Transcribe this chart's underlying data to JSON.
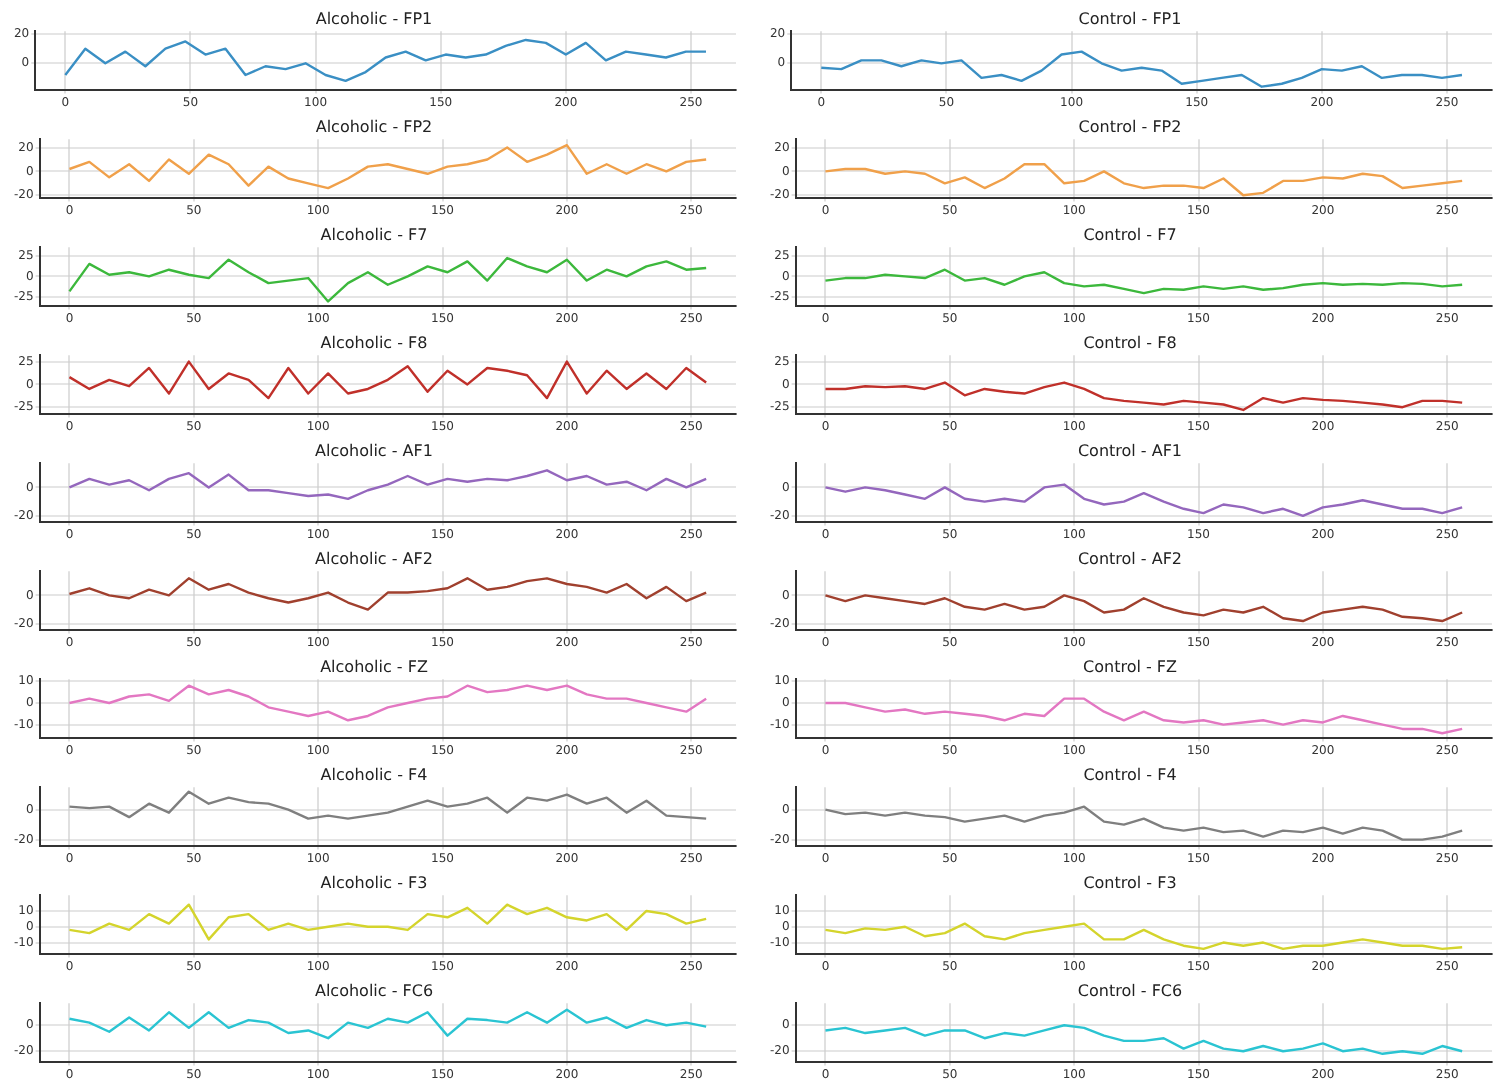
{
  "chart_data": [
    {
      "type": "line",
      "title": "Alcoholic - FP1",
      "x": [
        0,
        8,
        16,
        24,
        32,
        40,
        48,
        56,
        64,
        72,
        80,
        88,
        96,
        104,
        112,
        120,
        128,
        136,
        144,
        152,
        160,
        168,
        176,
        184,
        192,
        200,
        208,
        216,
        224,
        232,
        240,
        248,
        256
      ],
      "xlim": [
        -12,
        268
      ],
      "xticks": [
        0,
        50,
        100,
        150,
        200,
        250
      ],
      "ylim": [
        -18,
        22
      ],
      "yticks": [
        0,
        20
      ],
      "grid": true,
      "series": [
        {
          "color": "#3a8fc4",
          "values": [
            -8,
            10,
            0,
            8,
            -2,
            10,
            15,
            6,
            10,
            -8,
            -2,
            -4,
            0,
            -8,
            -12,
            -6,
            4,
            8,
            2,
            6,
            4,
            6,
            12,
            16,
            14,
            6,
            14,
            2,
            8,
            6,
            4,
            8,
            8
          ]
        }
      ]
    },
    {
      "type": "line",
      "title": "Control - FP1",
      "x": [
        0,
        8,
        16,
        24,
        32,
        40,
        48,
        56,
        64,
        72,
        80,
        88,
        96,
        104,
        112,
        120,
        128,
        136,
        144,
        152,
        160,
        168,
        176,
        184,
        192,
        200,
        208,
        216,
        224,
        232,
        240,
        248,
        256
      ],
      "xlim": [
        -12,
        268
      ],
      "xticks": [
        0,
        50,
        100,
        150,
        200,
        250
      ],
      "ylim": [
        -18,
        22
      ],
      "yticks": [
        0,
        20
      ],
      "grid": true,
      "series": [
        {
          "color": "#3a8fc4",
          "values": [
            -3,
            -4,
            2,
            2,
            -2,
            2,
            0,
            2,
            -10,
            -8,
            -12,
            -5,
            6,
            8,
            0,
            -5,
            -3,
            -5,
            -14,
            -12,
            -10,
            -8,
            -16,
            -14,
            -10,
            -4,
            -5,
            -2,
            -10,
            -8,
            -8,
            -10,
            -8
          ]
        }
      ]
    },
    {
      "type": "line",
      "title": "Alcoholic - FP2",
      "x": [
        0,
        8,
        16,
        24,
        32,
        40,
        48,
        56,
        64,
        72,
        80,
        88,
        96,
        104,
        112,
        120,
        128,
        136,
        144,
        152,
        160,
        168,
        176,
        184,
        192,
        200,
        208,
        216,
        224,
        232,
        240,
        248,
        256
      ],
      "xlim": [
        -12,
        268
      ],
      "xticks": [
        0,
        50,
        100,
        150,
        200,
        250
      ],
      "ylim": [
        -22,
        27
      ],
      "yticks": [
        -20,
        0,
        20
      ],
      "grid": true,
      "series": [
        {
          "color": "#f0a04a",
          "values": [
            2,
            8,
            -5,
            6,
            -8,
            10,
            -2,
            14,
            6,
            -12,
            4,
            -6,
            -10,
            -14,
            -6,
            4,
            6,
            2,
            -2,
            4,
            6,
            10,
            20,
            8,
            14,
            22,
            -2,
            6,
            -2,
            6,
            0,
            8,
            10
          ]
        }
      ]
    },
    {
      "type": "line",
      "title": "Control - FP2",
      "x": [
        0,
        8,
        16,
        24,
        32,
        40,
        48,
        56,
        64,
        72,
        80,
        88,
        96,
        104,
        112,
        120,
        128,
        136,
        144,
        152,
        160,
        168,
        176,
        184,
        192,
        200,
        208,
        216,
        224,
        232,
        240,
        248,
        256
      ],
      "xlim": [
        -12,
        268
      ],
      "xticks": [
        0,
        50,
        100,
        150,
        200,
        250
      ],
      "ylim": [
        -22,
        27
      ],
      "yticks": [
        -20,
        0,
        20
      ],
      "grid": true,
      "series": [
        {
          "color": "#f0a04a",
          "values": [
            0,
            2,
            2,
            -2,
            0,
            -2,
            -10,
            -5,
            -14,
            -6,
            6,
            6,
            -10,
            -8,
            0,
            -10,
            -14,
            -12,
            -12,
            -14,
            -6,
            -20,
            -18,
            -8,
            -8,
            -5,
            -6,
            -2,
            -4,
            -14,
            -12,
            -10,
            -8
          ]
        }
      ]
    },
    {
      "type": "line",
      "title": "Alcoholic - F7",
      "x": [
        0,
        8,
        16,
        24,
        32,
        40,
        48,
        56,
        64,
        72,
        80,
        88,
        96,
        104,
        112,
        120,
        128,
        136,
        144,
        152,
        160,
        168,
        176,
        184,
        192,
        200,
        208,
        216,
        224,
        232,
        240,
        248,
        256
      ],
      "xlim": [
        -12,
        268
      ],
      "xticks": [
        0,
        50,
        100,
        150,
        200,
        250
      ],
      "ylim": [
        -35,
        35
      ],
      "yticks": [
        -25,
        0,
        25
      ],
      "grid": true,
      "series": [
        {
          "color": "#3cb83c",
          "values": [
            -18,
            15,
            2,
            5,
            0,
            8,
            2,
            -2,
            20,
            5,
            -8,
            -5,
            -2,
            -30,
            -8,
            5,
            -10,
            0,
            12,
            5,
            18,
            -5,
            22,
            12,
            5,
            20,
            -5,
            8,
            0,
            12,
            18,
            8,
            10
          ]
        }
      ]
    },
    {
      "type": "line",
      "title": "Control - F7",
      "x": [
        0,
        8,
        16,
        24,
        32,
        40,
        48,
        56,
        64,
        72,
        80,
        88,
        96,
        104,
        112,
        120,
        128,
        136,
        144,
        152,
        160,
        168,
        176,
        184,
        192,
        200,
        208,
        216,
        224,
        232,
        240,
        248,
        256
      ],
      "xlim": [
        -12,
        268
      ],
      "xticks": [
        0,
        50,
        100,
        150,
        200,
        250
      ],
      "ylim": [
        -35,
        35
      ],
      "yticks": [
        -25,
        0,
        25
      ],
      "grid": true,
      "series": [
        {
          "color": "#3cb83c",
          "values": [
            -5,
            -2,
            -2,
            2,
            0,
            -2,
            8,
            -5,
            -2,
            -10,
            0,
            5,
            -8,
            -12,
            -10,
            -15,
            -20,
            -15,
            -16,
            -12,
            -15,
            -12,
            -16,
            -14,
            -10,
            -8,
            -10,
            -9,
            -10,
            -8,
            -9,
            -12,
            -10
          ]
        }
      ]
    },
    {
      "type": "line",
      "title": "Alcoholic - F8",
      "x": [
        0,
        8,
        16,
        24,
        32,
        40,
        48,
        56,
        64,
        72,
        80,
        88,
        96,
        104,
        112,
        120,
        128,
        136,
        144,
        152,
        160,
        168,
        176,
        184,
        192,
        200,
        208,
        216,
        224,
        232,
        240,
        248,
        256
      ],
      "xlim": [
        -12,
        268
      ],
      "xticks": [
        0,
        50,
        100,
        150,
        200,
        250
      ],
      "ylim": [
        -32,
        32
      ],
      "yticks": [
        -25,
        0,
        25
      ],
      "grid": true,
      "series": [
        {
          "color": "#c0302a",
          "values": [
            8,
            -5,
            5,
            -2,
            18,
            -10,
            25,
            -5,
            12,
            5,
            -15,
            18,
            -10,
            12,
            -10,
            -5,
            5,
            20,
            -8,
            15,
            0,
            18,
            15,
            10,
            -15,
            25,
            -10,
            15,
            -5,
            12,
            -5,
            18,
            2
          ]
        }
      ]
    },
    {
      "type": "line",
      "title": "Control - F8",
      "x": [
        0,
        8,
        16,
        24,
        32,
        40,
        48,
        56,
        64,
        72,
        80,
        88,
        96,
        104,
        112,
        120,
        128,
        136,
        144,
        152,
        160,
        168,
        176,
        184,
        192,
        200,
        208,
        216,
        224,
        232,
        240,
        248,
        256
      ],
      "xlim": [
        -12,
        268
      ],
      "xticks": [
        0,
        50,
        100,
        150,
        200,
        250
      ],
      "ylim": [
        -32,
        32
      ],
      "yticks": [
        -25,
        0,
        25
      ],
      "grid": true,
      "series": [
        {
          "color": "#c0302a",
          "values": [
            -5,
            -5,
            -2,
            -3,
            -2,
            -5,
            2,
            -12,
            -5,
            -8,
            -10,
            -3,
            2,
            -5,
            -15,
            -18,
            -20,
            -22,
            -18,
            -20,
            -22,
            -28,
            -15,
            -20,
            -15,
            -17,
            -18,
            -20,
            -22,
            -25,
            -18,
            -18,
            -20
          ]
        }
      ]
    },
    {
      "type": "line",
      "title": "Alcoholic - AF1",
      "x": [
        0,
        8,
        16,
        24,
        32,
        40,
        48,
        56,
        64,
        72,
        80,
        88,
        96,
        104,
        112,
        120,
        128,
        136,
        144,
        152,
        160,
        168,
        176,
        184,
        192,
        200,
        208,
        216,
        224,
        232,
        240,
        248,
        256
      ],
      "xlim": [
        -12,
        268
      ],
      "xticks": [
        0,
        50,
        100,
        150,
        200,
        250
      ],
      "ylim": [
        -24,
        17
      ],
      "yticks": [
        -20,
        0
      ],
      "grid": true,
      "series": [
        {
          "color": "#9467bd",
          "values": [
            0,
            6,
            2,
            5,
            -2,
            6,
            10,
            0,
            9,
            -2,
            -2,
            -4,
            -6,
            -5,
            -8,
            -2,
            2,
            8,
            2,
            6,
            4,
            6,
            5,
            8,
            12,
            5,
            8,
            2,
            4,
            -2,
            6,
            0,
            6
          ]
        }
      ]
    },
    {
      "type": "line",
      "title": "Control - AF1",
      "x": [
        0,
        8,
        16,
        24,
        32,
        40,
        48,
        56,
        64,
        72,
        80,
        88,
        96,
        104,
        112,
        120,
        128,
        136,
        144,
        152,
        160,
        168,
        176,
        184,
        192,
        200,
        208,
        216,
        224,
        232,
        240,
        248,
        256
      ],
      "xlim": [
        -12,
        268
      ],
      "xticks": [
        0,
        50,
        100,
        150,
        200,
        250
      ],
      "ylim": [
        -24,
        17
      ],
      "yticks": [
        -20,
        0
      ],
      "grid": true,
      "series": [
        {
          "color": "#9467bd",
          "values": [
            0,
            -3,
            0,
            -2,
            -5,
            -8,
            0,
            -8,
            -10,
            -8,
            -10,
            0,
            2,
            -8,
            -12,
            -10,
            -4,
            -10,
            -15,
            -18,
            -12,
            -14,
            -18,
            -15,
            -20,
            -14,
            -12,
            -9,
            -12,
            -15,
            -15,
            -18,
            -14
          ]
        }
      ]
    },
    {
      "type": "line",
      "title": "Alcoholic - AF2",
      "x": [
        0,
        8,
        16,
        24,
        32,
        40,
        48,
        56,
        64,
        72,
        80,
        88,
        96,
        104,
        112,
        120,
        128,
        136,
        144,
        152,
        160,
        168,
        176,
        184,
        192,
        200,
        208,
        216,
        224,
        232,
        240,
        248,
        256
      ],
      "xlim": [
        -12,
        268
      ],
      "xticks": [
        0,
        50,
        100,
        150,
        200,
        250
      ],
      "ylim": [
        -24,
        17
      ],
      "yticks": [
        -20,
        0
      ],
      "grid": true,
      "series": [
        {
          "color": "#a0402e",
          "values": [
            1,
            5,
            0,
            -2,
            4,
            0,
            12,
            4,
            8,
            2,
            -2,
            -5,
            -2,
            2,
            -5,
            -10,
            2,
            2,
            3,
            5,
            12,
            4,
            6,
            10,
            12,
            8,
            6,
            2,
            8,
            -2,
            6,
            -4,
            2
          ]
        }
      ]
    },
    {
      "type": "line",
      "title": "Control - AF2",
      "x": [
        0,
        8,
        16,
        24,
        32,
        40,
        48,
        56,
        64,
        72,
        80,
        88,
        96,
        104,
        112,
        120,
        128,
        136,
        144,
        152,
        160,
        168,
        176,
        184,
        192,
        200,
        208,
        216,
        224,
        232,
        240,
        248,
        256
      ],
      "xlim": [
        -12,
        268
      ],
      "xticks": [
        0,
        50,
        100,
        150,
        200,
        250
      ],
      "ylim": [
        -24,
        17
      ],
      "yticks": [
        -20,
        0
      ],
      "grid": true,
      "series": [
        {
          "color": "#a0402e",
          "values": [
            0,
            -4,
            0,
            -2,
            -4,
            -6,
            -2,
            -8,
            -10,
            -6,
            -10,
            -8,
            0,
            -4,
            -12,
            -10,
            -2,
            -8,
            -12,
            -14,
            -10,
            -12,
            -8,
            -16,
            -18,
            -12,
            -10,
            -8,
            -10,
            -15,
            -16,
            -18,
            -12
          ]
        }
      ]
    },
    {
      "type": "line",
      "title": "Alcoholic - FZ",
      "x": [
        0,
        8,
        16,
        24,
        32,
        40,
        48,
        56,
        64,
        72,
        80,
        88,
        96,
        104,
        112,
        120,
        128,
        136,
        144,
        152,
        160,
        168,
        176,
        184,
        192,
        200,
        208,
        216,
        224,
        232,
        240,
        248,
        256
      ],
      "xlim": [
        -12,
        268
      ],
      "xticks": [
        0,
        50,
        100,
        150,
        200,
        250
      ],
      "ylim": [
        -16,
        11
      ],
      "yticks": [
        -10,
        0,
        10
      ],
      "grid": true,
      "series": [
        {
          "color": "#e377c2",
          "values": [
            0,
            2,
            0,
            3,
            4,
            1,
            8,
            4,
            6,
            3,
            -2,
            -4,
            -6,
            -4,
            -8,
            -6,
            -2,
            0,
            2,
            3,
            8,
            5,
            6,
            8,
            6,
            8,
            4,
            2,
            2,
            0,
            -2,
            -4,
            2
          ]
        }
      ]
    },
    {
      "type": "line",
      "title": "Control - FZ",
      "x": [
        0,
        8,
        16,
        24,
        32,
        40,
        48,
        56,
        64,
        72,
        80,
        88,
        96,
        104,
        112,
        120,
        128,
        136,
        144,
        152,
        160,
        168,
        176,
        184,
        192,
        200,
        208,
        216,
        224,
        232,
        240,
        248,
        256
      ],
      "xlim": [
        -12,
        268
      ],
      "xticks": [
        0,
        50,
        100,
        150,
        200,
        250
      ],
      "ylim": [
        -16,
        11
      ],
      "yticks": [
        -10,
        0,
        10
      ],
      "grid": true,
      "series": [
        {
          "color": "#e377c2",
          "values": [
            0,
            0,
            -2,
            -4,
            -3,
            -5,
            -4,
            -5,
            -6,
            -8,
            -5,
            -6,
            2,
            2,
            -4,
            -8,
            -4,
            -8,
            -9,
            -8,
            -10,
            -9,
            -8,
            -10,
            -8,
            -9,
            -6,
            -8,
            -10,
            -12,
            -12,
            -14,
            -12
          ]
        }
      ]
    },
    {
      "type": "line",
      "title": "Alcoholic - F4",
      "x": [
        0,
        8,
        16,
        24,
        32,
        40,
        48,
        56,
        64,
        72,
        80,
        88,
        96,
        104,
        112,
        120,
        128,
        136,
        144,
        152,
        160,
        168,
        176,
        184,
        192,
        200,
        208,
        216,
        224,
        232,
        240,
        248,
        256
      ],
      "xlim": [
        -12,
        268
      ],
      "xticks": [
        0,
        50,
        100,
        150,
        200,
        250
      ],
      "ylim": [
        -24,
        15
      ],
      "yticks": [
        -20,
        0
      ],
      "grid": true,
      "series": [
        {
          "color": "#7f7f7f",
          "values": [
            2,
            1,
            2,
            -5,
            4,
            -2,
            12,
            4,
            8,
            5,
            4,
            0,
            -6,
            -4,
            -6,
            -4,
            -2,
            2,
            6,
            2,
            4,
            8,
            -2,
            8,
            6,
            10,
            4,
            8,
            -2,
            6,
            -4,
            -5,
            -6
          ]
        }
      ]
    },
    {
      "type": "line",
      "title": "Control - F4",
      "x": [
        0,
        8,
        16,
        24,
        32,
        40,
        48,
        56,
        64,
        72,
        80,
        88,
        96,
        104,
        112,
        120,
        128,
        136,
        144,
        152,
        160,
        168,
        176,
        184,
        192,
        200,
        208,
        216,
        224,
        232,
        240,
        248,
        256
      ],
      "xlim": [
        -12,
        268
      ],
      "xticks": [
        0,
        50,
        100,
        150,
        200,
        250
      ],
      "ylim": [
        -24,
        15
      ],
      "yticks": [
        -20,
        0
      ],
      "grid": true,
      "series": [
        {
          "color": "#7f7f7f",
          "values": [
            0,
            -3,
            -2,
            -4,
            -2,
            -4,
            -5,
            -8,
            -6,
            -4,
            -8,
            -4,
            -2,
            2,
            -8,
            -10,
            -6,
            -12,
            -14,
            -12,
            -15,
            -14,
            -18,
            -14,
            -15,
            -12,
            -16,
            -12,
            -14,
            -20,
            -20,
            -18,
            -14
          ]
        }
      ]
    },
    {
      "type": "line",
      "title": "Alcoholic - F3",
      "x": [
        0,
        8,
        16,
        24,
        32,
        40,
        48,
        56,
        64,
        72,
        80,
        88,
        96,
        104,
        112,
        120,
        128,
        136,
        144,
        152,
        160,
        168,
        176,
        184,
        192,
        200,
        208,
        216,
        224,
        232,
        240,
        248,
        256
      ],
      "xlim": [
        -12,
        268
      ],
      "xticks": [
        0,
        50,
        100,
        150,
        200,
        250
      ],
      "ylim": [
        -17,
        20
      ],
      "yticks": [
        -10,
        0,
        10
      ],
      "grid": true,
      "series": [
        {
          "color": "#d4d42c",
          "values": [
            -2,
            -4,
            2,
            -2,
            8,
            2,
            14,
            -8,
            6,
            8,
            -2,
            2,
            -2,
            0,
            2,
            0,
            0,
            -2,
            8,
            6,
            12,
            2,
            14,
            8,
            12,
            6,
            4,
            8,
            -2,
            10,
            8,
            2,
            5
          ]
        }
      ]
    },
    {
      "type": "line",
      "title": "Control - F3",
      "x": [
        0,
        8,
        16,
        24,
        32,
        40,
        48,
        56,
        64,
        72,
        80,
        88,
        96,
        104,
        112,
        120,
        128,
        136,
        144,
        152,
        160,
        168,
        176,
        184,
        192,
        200,
        208,
        216,
        224,
        232,
        240,
        248,
        256
      ],
      "xlim": [
        -12,
        268
      ],
      "xticks": [
        0,
        50,
        100,
        150,
        200,
        250
      ],
      "ylim": [
        -17,
        20
      ],
      "yticks": [
        -10,
        0,
        10
      ],
      "grid": true,
      "series": [
        {
          "color": "#d4d42c",
          "values": [
            -2,
            -4,
            -1,
            -2,
            0,
            -6,
            -4,
            2,
            -6,
            -8,
            -4,
            -2,
            0,
            2,
            -8,
            -8,
            -2,
            -8,
            -12,
            -14,
            -10,
            -12,
            -10,
            -14,
            -12,
            -12,
            -10,
            -8,
            -10,
            -12,
            -12,
            -14,
            -13
          ]
        }
      ]
    },
    {
      "type": "line",
      "title": "Alcoholic - FC6",
      "x": [
        0,
        8,
        16,
        24,
        32,
        40,
        48,
        56,
        64,
        72,
        80,
        88,
        96,
        104,
        112,
        120,
        128,
        136,
        144,
        152,
        160,
        168,
        176,
        184,
        192,
        200,
        208,
        216,
        224,
        232,
        240,
        248,
        256
      ],
      "xlim": [
        -12,
        268
      ],
      "xticks": [
        0,
        50,
        100,
        150,
        200,
        250
      ],
      "ylim": [
        -28,
        17
      ],
      "yticks": [
        -20,
        0
      ],
      "grid": true,
      "series": [
        {
          "color": "#2ac4d2",
          "values": [
            5,
            2,
            -5,
            6,
            -4,
            10,
            -2,
            10,
            -2,
            4,
            2,
            -6,
            -4,
            -10,
            2,
            -2,
            5,
            2,
            10,
            -8,
            5,
            4,
            2,
            10,
            2,
            12,
            2,
            6,
            -2,
            4,
            0,
            2,
            -1
          ]
        }
      ]
    },
    {
      "type": "line",
      "title": "Control - FC6",
      "x": [
        0,
        8,
        16,
        24,
        32,
        40,
        48,
        56,
        64,
        72,
        80,
        88,
        96,
        104,
        112,
        120,
        128,
        136,
        144,
        152,
        160,
        168,
        176,
        184,
        192,
        200,
        208,
        216,
        224,
        232,
        240,
        248,
        256
      ],
      "xlim": [
        -12,
        268
      ],
      "xticks": [
        0,
        50,
        100,
        150,
        200,
        250
      ],
      "ylim": [
        -28,
        17
      ],
      "yticks": [
        -20,
        0
      ],
      "grid": true,
      "series": [
        {
          "color": "#2ac4d2",
          "values": [
            -4,
            -2,
            -6,
            -4,
            -2,
            -8,
            -4,
            -4,
            -10,
            -6,
            -8,
            -4,
            0,
            -2,
            -8,
            -12,
            -12,
            -10,
            -18,
            -12,
            -18,
            -20,
            -16,
            -20,
            -18,
            -14,
            -20,
            -18,
            -22,
            -20,
            -22,
            -16,
            -20
          ]
        }
      ]
    }
  ]
}
